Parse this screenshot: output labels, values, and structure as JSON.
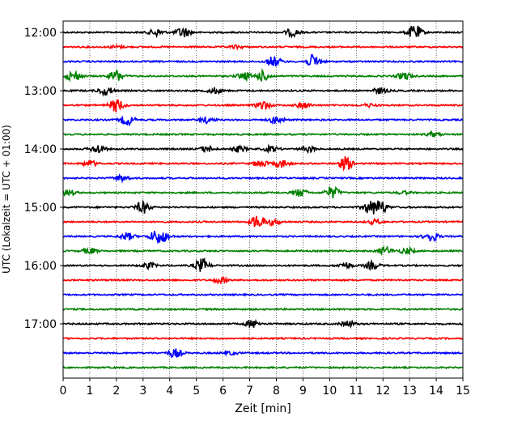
{
  "chart_data": {
    "type": "line",
    "xlabel": "Zeit  [min]",
    "ylabel": "UTC (Lokalzeit = UTC + 01:00)",
    "xlim": [
      0,
      15
    ],
    "x_ticks": [
      0,
      1,
      2,
      3,
      4,
      5,
      6,
      7,
      8,
      9,
      10,
      11,
      12,
      13,
      14,
      15
    ],
    "x_tick_labels": [
      "0",
      "1",
      "2",
      "3",
      "4",
      "5",
      "6",
      "7",
      "8",
      "9",
      "10",
      "11",
      "12",
      "13",
      "14",
      "15"
    ],
    "y_tick_labels": [
      "12:00",
      "13:00",
      "14:00",
      "15:00",
      "16:00",
      "17:00"
    ],
    "y_tick_times": [
      "12:00",
      "13:00",
      "14:00",
      "15:00",
      "16:00",
      "17:00"
    ],
    "vertical_grid": "dotted",
    "trace_interval_min": 15,
    "colors": [
      "#000000",
      "#ff0000",
      "#0000ff",
      "#008000"
    ],
    "traces": [
      {
        "start": "12:00",
        "color": "#000000",
        "events": [
          [
            3.5,
            0.5
          ],
          [
            4.5,
            0.7
          ],
          [
            8.6,
            0.5
          ],
          [
            13.2,
            1.0
          ]
        ]
      },
      {
        "start": "12:15",
        "color": "#ff0000",
        "events": [
          [
            2.0,
            0.2
          ],
          [
            6.5,
            0.2
          ]
        ]
      },
      {
        "start": "12:30",
        "color": "#0000ff",
        "events": [
          [
            7.9,
            0.7
          ],
          [
            9.4,
            0.9
          ]
        ]
      },
      {
        "start": "12:45",
        "color": "#008000",
        "events": [
          [
            0.4,
            0.7
          ],
          [
            2.0,
            0.8
          ],
          [
            6.8,
            0.5
          ],
          [
            7.5,
            0.7
          ],
          [
            12.8,
            0.5
          ]
        ]
      },
      {
        "start": "13:00",
        "color": "#000000",
        "events": [
          [
            1.6,
            0.6
          ],
          [
            5.7,
            0.4
          ],
          [
            11.9,
            0.4
          ]
        ]
      },
      {
        "start": "13:15",
        "color": "#ff0000",
        "events": [
          [
            2.0,
            0.9
          ],
          [
            7.5,
            0.6
          ],
          [
            9.0,
            0.4
          ],
          [
            11.5,
            0.2
          ]
        ]
      },
      {
        "start": "13:30",
        "color": "#0000ff",
        "events": [
          [
            2.4,
            0.7
          ],
          [
            5.4,
            0.4
          ],
          [
            8.0,
            0.5
          ]
        ]
      },
      {
        "start": "13:45",
        "color": "#008000",
        "events": [
          [
            13.9,
            0.3
          ]
        ]
      },
      {
        "start": "14:00",
        "color": "#000000",
        "events": [
          [
            1.3,
            0.6
          ],
          [
            5.4,
            0.4
          ],
          [
            6.6,
            0.4
          ],
          [
            7.8,
            0.4
          ],
          [
            9.2,
            0.4
          ]
        ]
      },
      {
        "start": "14:15",
        "color": "#ff0000",
        "events": [
          [
            1.0,
            0.4
          ],
          [
            7.4,
            0.5
          ],
          [
            8.2,
            0.5
          ],
          [
            10.6,
            0.9
          ]
        ]
      },
      {
        "start": "14:30",
        "color": "#0000ff",
        "events": [
          [
            2.2,
            0.4
          ]
        ]
      },
      {
        "start": "14:45",
        "color": "#008000",
        "events": [
          [
            0.2,
            0.4
          ],
          [
            8.9,
            0.5
          ],
          [
            10.1,
            0.8
          ],
          [
            12.8,
            0.2
          ]
        ]
      },
      {
        "start": "15:00",
        "color": "#000000",
        "events": [
          [
            3.0,
            0.8
          ],
          [
            11.5,
            0.8
          ],
          [
            11.9,
            0.9
          ]
        ]
      },
      {
        "start": "15:15",
        "color": "#ff0000",
        "events": [
          [
            7.3,
            0.9
          ],
          [
            7.9,
            0.4
          ],
          [
            11.7,
            0.3
          ]
        ]
      },
      {
        "start": "15:30",
        "color": "#0000ff",
        "events": [
          [
            2.4,
            0.5
          ],
          [
            3.5,
            0.8
          ],
          [
            3.8,
            0.5
          ],
          [
            13.8,
            0.7
          ]
        ]
      },
      {
        "start": "15:45",
        "color": "#008000",
        "events": [
          [
            1.0,
            0.4
          ],
          [
            12.1,
            0.5
          ],
          [
            12.9,
            0.4
          ]
        ]
      },
      {
        "start": "16:00",
        "color": "#000000",
        "events": [
          [
            3.2,
            0.4
          ],
          [
            5.2,
            0.9
          ],
          [
            10.6,
            0.4
          ],
          [
            11.6,
            0.5
          ]
        ]
      },
      {
        "start": "16:15",
        "color": "#ff0000",
        "events": [
          [
            5.9,
            0.4
          ]
        ]
      },
      {
        "start": "16:30",
        "color": "#0000ff",
        "events": []
      },
      {
        "start": "16:45",
        "color": "#008000",
        "events": []
      },
      {
        "start": "17:00",
        "color": "#000000",
        "events": [
          [
            7.1,
            0.5
          ],
          [
            10.7,
            0.4
          ]
        ]
      },
      {
        "start": "17:15",
        "color": "#ff0000",
        "events": []
      },
      {
        "start": "17:30",
        "color": "#0000ff",
        "events": [
          [
            4.2,
            0.6
          ],
          [
            6.3,
            0.2
          ]
        ]
      },
      {
        "start": "17:45",
        "color": "#008000",
        "events": []
      }
    ]
  }
}
